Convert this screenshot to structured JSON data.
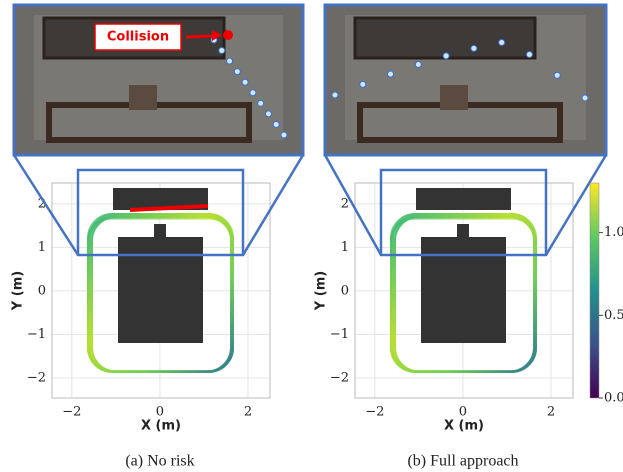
{
  "panels": [
    {
      "annotation": "Collision",
      "caption": "(a) No risk",
      "x_label": "X (m)",
      "y_label": "Y (m)",
      "xlim": [
        -2.45,
        2.5
      ],
      "ylim": [
        -2.46,
        2.48
      ],
      "xticks": [
        {
          "value": -2,
          "label": "−2"
        },
        0,
        2
      ],
      "yticks": [
        {
          "value": -2,
          "label": "−2"
        },
        {
          "value": -1,
          "label": "−1"
        },
        0,
        1,
        2
      ]
    },
    {
      "caption": "(b) Full approach",
      "x_label": "X (m)",
      "y_label": "Y (m)",
      "xlim": [
        -2.45,
        2.5
      ],
      "ylim": [
        -2.46,
        2.48
      ],
      "xticks": [
        {
          "value": -2,
          "label": "−2"
        },
        0,
        2
      ],
      "yticks": [
        {
          "value": -2,
          "label": "−2"
        },
        {
          "value": -1,
          "label": "−1"
        },
        0,
        1,
        2
      ]
    }
  ],
  "colorbar": {
    "lim": [
      0,
      1.3
    ],
    "ticks": [
      {
        "value": 0,
        "label": "0.0"
      },
      {
        "value": 0.5,
        "label": "0.5"
      },
      {
        "value": 1,
        "label": "1.0"
      }
    ]
  }
}
